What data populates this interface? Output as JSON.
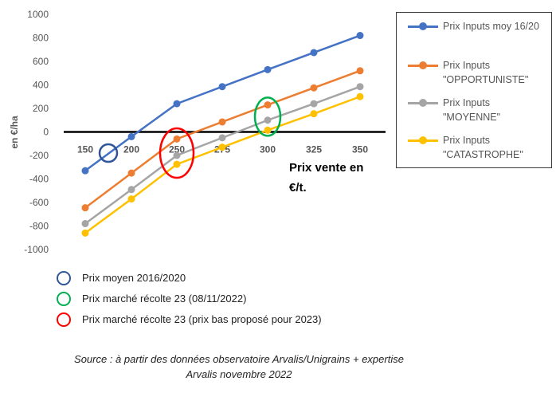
{
  "chart_data": {
    "type": "line",
    "x": [
      150,
      200,
      250,
      275,
      300,
      325,
      350
    ],
    "categories": [
      "150",
      "200",
      "250",
      "275",
      "300",
      "325",
      "350"
    ],
    "series": [
      {
        "name": "Prix Inputs moy 16/20",
        "color": "#4472C4",
        "values": [
          -330,
          -40,
          240,
          385,
          530,
          675,
          820
        ]
      },
      {
        "name": "Prix Inputs \"OPPORTUNISTE\"",
        "color": "#ED7D31",
        "values": [
          -645,
          -350,
          -60,
          85,
          230,
          375,
          520
        ]
      },
      {
        "name": "Prix Inputs \"MOYENNE\"",
        "color": "#A5A5A5",
        "values": [
          -780,
          -490,
          -200,
          -50,
          100,
          240,
          385
        ]
      },
      {
        "name": "Prix Inputs \"CATASTROPHE\"",
        "color": "#FFC000",
        "values": [
          -860,
          -570,
          -275,
          -130,
          15,
          155,
          300
        ]
      }
    ],
    "ylabel": "en €/ha",
    "xlabel": "Prix vente en €/t.",
    "ylim": [
      -1000,
      1000
    ],
    "yticks": [
      1000,
      800,
      600,
      400,
      200,
      0,
      -200,
      -400,
      -600,
      -800,
      -1000
    ],
    "ytick_labels": [
      "1000",
      "800",
      "600",
      "400",
      "200",
      "0",
      "-200",
      "-400",
      "-600",
      "-800",
      "-1000"
    ],
    "grid": false,
    "legend_position": "top-right",
    "annotations": [
      {
        "shape": "circle",
        "color": "#2F5597",
        "x": 175,
        "y": -180
      },
      {
        "shape": "ellipse",
        "color": "#FF0000",
        "x": 250,
        "y": -180
      },
      {
        "shape": "ellipse",
        "color": "#00B050",
        "x": 300,
        "y": 130
      }
    ]
  },
  "notes": [
    {
      "text": "Prix moyen 2016/2020",
      "color": "#2F5597"
    },
    {
      "text": "Prix marché  récolte 23 (08/11/2022)",
      "color": "#00B050"
    },
    {
      "text": "Prix marché récolte 23 (prix bas proposé pour 2023)",
      "color": "#FF0000"
    }
  ],
  "source": {
    "line1": "Source : à partir des données observatoire Arvalis/Unigrains + expertise",
    "line2": "Arvalis novembre 2022"
  }
}
